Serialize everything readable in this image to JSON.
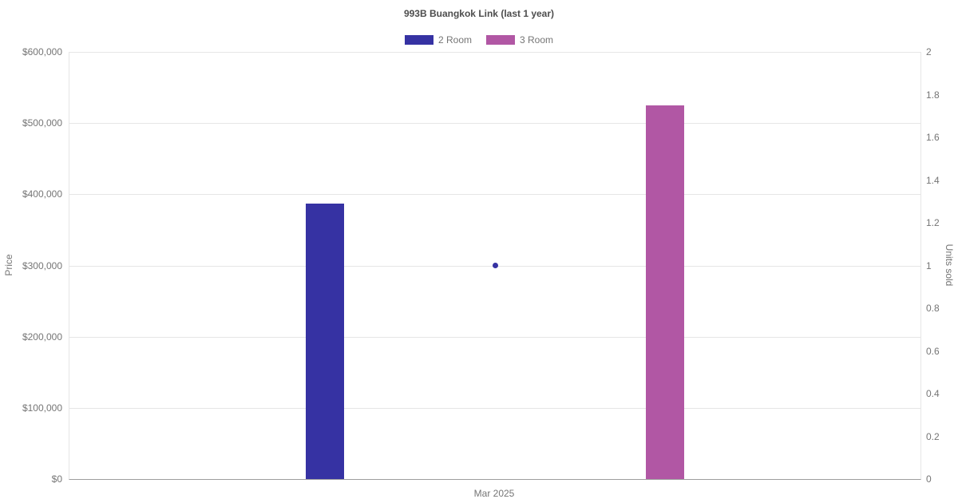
{
  "chart_data": {
    "type": "bar",
    "title": "993B Buangkok Link (last 1 year)",
    "categories": [
      "Mar 2025"
    ],
    "series": [
      {
        "name": "2 Room",
        "type": "bar",
        "yaxis": "left",
        "color": "#3632a3",
        "values": [
          387000
        ]
      },
      {
        "name": "3 Room",
        "type": "bar",
        "yaxis": "left",
        "color": "#b157a4",
        "values": [
          525000
        ]
      },
      {
        "name": "2 Room units sold",
        "type": "point",
        "yaxis": "right",
        "color": "#3632a3",
        "values": [
          1
        ]
      }
    ],
    "ylabel": "Price",
    "y2label": "Units sold",
    "ylim": [
      0,
      600000
    ],
    "y2lim": [
      0,
      2
    ],
    "left_ticks": [
      "$0",
      "$100,000",
      "$200,000",
      "$300,000",
      "$400,000",
      "$500,000",
      "$600,000"
    ],
    "right_ticks": [
      "0",
      "0.2",
      "0.4",
      "0.6",
      "0.8",
      "1",
      "1.2",
      "1.4",
      "1.6",
      "1.8",
      "2"
    ],
    "x_ticks": [
      "Mar 2025"
    ],
    "legend": [
      {
        "label": "2 Room",
        "color": "#3632a3"
      },
      {
        "label": "3 Room",
        "color": "#b157a4"
      }
    ],
    "grid": true,
    "legend_position": "top",
    "colors": {
      "background": "#ffffff",
      "gridline": "#e6e6e6",
      "axis_line": "#9e9e9e",
      "tick_text": "#757575",
      "title_text": "#4d4d4d"
    }
  }
}
